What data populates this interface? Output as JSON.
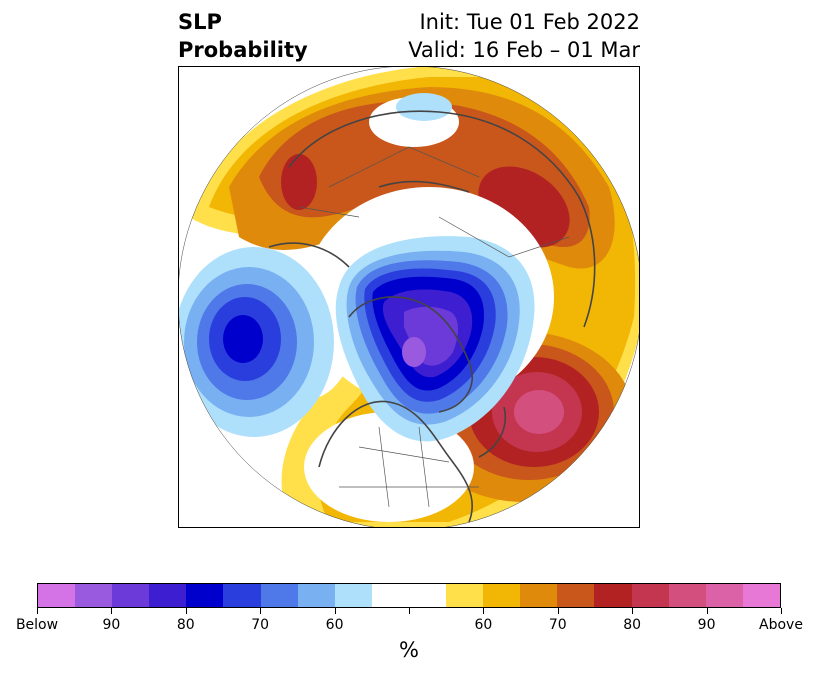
{
  "header": {
    "title_line1": "SLP",
    "title_line2": "Probability",
    "init_text": "Init: Tue 01 Feb 2022",
    "valid_text": "Valid: 16 Feb – 01 Mar"
  },
  "map": {
    "projection": "north-polar-stereographic",
    "colors": {
      "coastline": "#444444",
      "background": "#ffffff"
    }
  },
  "colorbar": {
    "colors": [
      "#d473e6",
      "#9a5ae0",
      "#6b3ad8",
      "#3d1fd1",
      "#0000cc",
      "#2a3ede",
      "#4f78e8",
      "#78b0f2",
      "#aee0fb",
      "#ffffff",
      "#ffffff",
      "#ffe04a",
      "#f2b705",
      "#e08a0c",
      "#c9561a",
      "#b22222",
      "#c43650",
      "#d24f7e",
      "#db62a6",
      "#e878d6"
    ],
    "tick_labels": [
      "Below",
      "90",
      "80",
      "70",
      "60",
      "60",
      "70",
      "80",
      "90",
      "Above"
    ],
    "unit_label": "%"
  }
}
